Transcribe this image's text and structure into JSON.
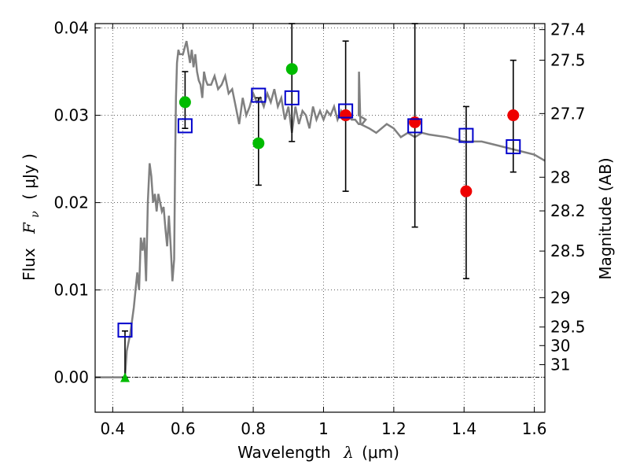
{
  "chart_data": {
    "type": "scatter",
    "xlabel_text": "Wavelength",
    "xlabel_symbol": "λ",
    "xlabel_unit": "(μm)",
    "ylabel_text": "Flux",
    "ylabel_symbol": "F",
    "ylabel_subscript": "ν",
    "ylabel_unit": "( μJy )",
    "y2label": "Magnitude (AB)",
    "xlim": [
      0.35,
      1.63
    ],
    "ylim": [
      -0.004,
      0.0405
    ],
    "grid": true,
    "x_ticks": [
      {
        "value": 0.4,
        "label": "0.4"
      },
      {
        "value": 0.6,
        "label": "0.6"
      },
      {
        "value": 0.8,
        "label": "0.8"
      },
      {
        "value": 1.0,
        "label": "1"
      },
      {
        "value": 1.2,
        "label": "1.2"
      },
      {
        "value": 1.4,
        "label": "1.4"
      },
      {
        "value": 1.6,
        "label": "1.6"
      }
    ],
    "y_ticks": [
      {
        "value": 0.0,
        "label": "0.00"
      },
      {
        "value": 0.01,
        "label": "0.01"
      },
      {
        "value": 0.02,
        "label": "0.02"
      },
      {
        "value": 0.03,
        "label": "0.03"
      },
      {
        "value": 0.04,
        "label": "0.04"
      }
    ],
    "mag_ticks": [
      {
        "mag": 27.4,
        "label": "27.4"
      },
      {
        "mag": 27.5,
        "label": "27.5"
      },
      {
        "mag": 27.7,
        "label": "27.7"
      },
      {
        "mag": 28,
        "label": "28"
      },
      {
        "mag": 28.2,
        "label": "28.2"
      },
      {
        "mag": 28.5,
        "label": "28.5"
      },
      {
        "mag": 29,
        "label": "29"
      },
      {
        "mag": 29.5,
        "label": "29.5"
      },
      {
        "mag": 30,
        "label": "30"
      },
      {
        "mag": 31,
        "label": "31"
      }
    ],
    "model_spectrum": {
      "color": "#808080",
      "x": [
        0.35,
        0.43,
        0.435,
        0.44,
        0.45,
        0.46,
        0.47,
        0.475,
        0.48,
        0.485,
        0.49,
        0.495,
        0.5,
        0.505,
        0.51,
        0.515,
        0.52,
        0.525,
        0.53,
        0.535,
        0.54,
        0.545,
        0.55,
        0.555,
        0.56,
        0.565,
        0.57,
        0.575,
        0.578,
        0.58,
        0.583,
        0.587,
        0.59,
        0.6,
        0.61,
        0.62,
        0.625,
        0.63,
        0.635,
        0.64,
        0.645,
        0.65,
        0.655,
        0.66,
        0.665,
        0.67,
        0.68,
        0.69,
        0.7,
        0.71,
        0.72,
        0.73,
        0.74,
        0.75,
        0.76,
        0.77,
        0.78,
        0.79,
        0.8,
        0.81,
        0.82,
        0.83,
        0.84,
        0.85,
        0.86,
        0.87,
        0.88,
        0.89,
        0.9,
        0.91,
        0.92,
        0.93,
        0.94,
        0.95,
        0.96,
        0.97,
        0.98,
        0.99,
        1.0,
        1.01,
        1.02,
        1.03,
        1.04,
        1.05,
        1.06,
        1.07,
        1.08,
        1.09,
        1.1,
        1.11,
        1.12,
        1.1,
        1.101,
        1.105,
        1.13,
        1.15,
        1.18,
        1.2,
        1.22,
        1.24,
        1.26,
        1.28,
        1.3,
        1.35,
        1.4,
        1.45,
        1.5,
        1.55,
        1.6,
        1.63
      ],
      "y": [
        0.0,
        0.0,
        0.0,
        0.003,
        0.005,
        0.008,
        0.012,
        0.01,
        0.016,
        0.0145,
        0.016,
        0.011,
        0.02,
        0.0245,
        0.023,
        0.02,
        0.021,
        0.019,
        0.021,
        0.02,
        0.019,
        0.0195,
        0.017,
        0.015,
        0.0185,
        0.015,
        0.011,
        0.0135,
        0.026,
        0.032,
        0.036,
        0.0375,
        0.037,
        0.037,
        0.0385,
        0.036,
        0.0375,
        0.0355,
        0.037,
        0.035,
        0.034,
        0.0335,
        0.032,
        0.035,
        0.034,
        0.0335,
        0.0335,
        0.0345,
        0.033,
        0.0335,
        0.0345,
        0.0325,
        0.033,
        0.031,
        0.029,
        0.032,
        0.03,
        0.031,
        0.0325,
        0.0315,
        0.032,
        0.031,
        0.0325,
        0.0315,
        0.033,
        0.031,
        0.032,
        0.0295,
        0.031,
        0.028,
        0.031,
        0.029,
        0.0305,
        0.03,
        0.0285,
        0.031,
        0.0295,
        0.0305,
        0.0295,
        0.0305,
        0.03,
        0.031,
        0.0295,
        0.0305,
        0.0295,
        0.03,
        0.0295,
        0.0295,
        0.029,
        0.029,
        0.0295,
        0.03,
        0.035,
        0.029,
        0.0285,
        0.028,
        0.029,
        0.0285,
        0.0275,
        0.028,
        0.0275,
        0.028,
        0.0278,
        0.0275,
        0.027,
        0.027,
        0.0265,
        0.026,
        0.0255,
        0.0248
      ]
    },
    "errorbars": [
      {
        "x": 0.435,
        "y": 0.0025,
        "low": 0.0,
        "high": 0.0053
      },
      {
        "x": 0.606,
        "y": 0.0315,
        "low": 0.0285,
        "high": 0.035
      },
      {
        "x": 0.815,
        "y": 0.027,
        "low": 0.022,
        "high": 0.032
      },
      {
        "x": 0.91,
        "y": 0.0333,
        "low": 0.027,
        "high": 0.0405
      },
      {
        "x": 1.063,
        "y": 0.03,
        "low": 0.0213,
        "high": 0.0385
      },
      {
        "x": 1.26,
        "y": 0.0292,
        "low": 0.0172,
        "high": 0.0405
      },
      {
        "x": 1.406,
        "y": 0.0213,
        "low": 0.0113,
        "high": 0.031
      },
      {
        "x": 1.54,
        "y": 0.03,
        "low": 0.0235,
        "high": 0.0363
      }
    ],
    "green_points": {
      "color": "#00bb00",
      "points": [
        {
          "x": 0.606,
          "y": 0.0315
        },
        {
          "x": 0.815,
          "y": 0.0268
        },
        {
          "x": 0.91,
          "y": 0.0353
        }
      ]
    },
    "green_upper_limit": {
      "color": "#00bb00",
      "x": 0.435,
      "y": 0.0
    },
    "red_points": {
      "color": "#ee0000",
      "points": [
        {
          "x": 1.063,
          "y": 0.03
        },
        {
          "x": 1.26,
          "y": 0.0292
        },
        {
          "x": 1.406,
          "y": 0.0213
        },
        {
          "x": 1.54,
          "y": 0.03
        }
      ]
    },
    "model_photometry": {
      "color": "#0000cc",
      "points": [
        {
          "x": 0.435,
          "y": 0.0054
        },
        {
          "x": 0.606,
          "y": 0.0288
        },
        {
          "x": 0.815,
          "y": 0.0323
        },
        {
          "x": 0.91,
          "y": 0.032
        },
        {
          "x": 1.063,
          "y": 0.0305
        },
        {
          "x": 1.26,
          "y": 0.0288
        },
        {
          "x": 1.406,
          "y": 0.0277
        },
        {
          "x": 1.54,
          "y": 0.0264
        }
      ]
    }
  }
}
